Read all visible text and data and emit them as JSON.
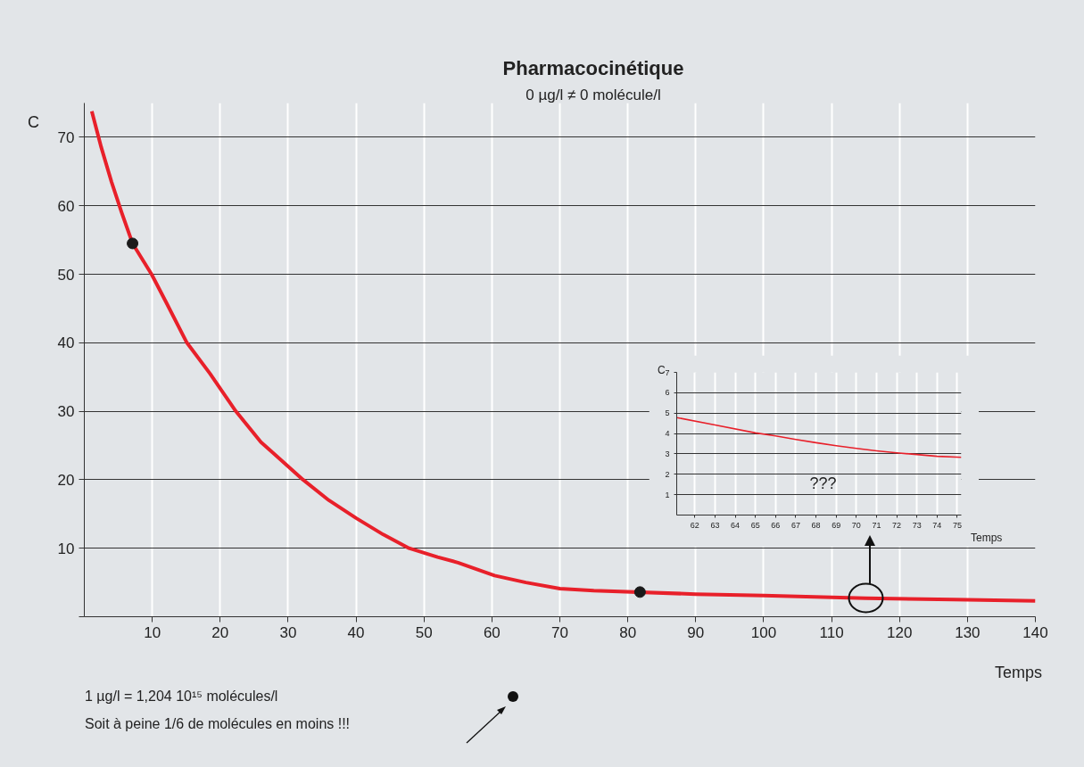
{
  "chart_data": [
    {
      "type": "line",
      "title": "Pharmacocinétique",
      "subtitle": "0 µg/l ≠ 0 molécule/l",
      "xlabel": "Temps",
      "ylabel": "C",
      "annotations": [
        "1 µg/l = 1,204 10¹⁵ molécules/l",
        "Soit à peine 1/6 de molécules en moins !!!"
      ],
      "xlim": [
        0,
        140
      ],
      "ylim": [
        0,
        75
      ],
      "xticks": [
        10,
        20,
        30,
        40,
        50,
        60,
        70,
        80,
        90,
        100,
        110,
        120,
        130,
        140
      ],
      "yticks": [
        {
          "value": 0,
          "label": null
        },
        10,
        20,
        30,
        40,
        50,
        60,
        70
      ],
      "grid": true,
      "series": [
        {
          "color": "#e8202a",
          "x": [
            1.1,
            2.5,
            4,
            5.5,
            7.1,
            9.9,
            12,
            15.1,
            18.5,
            22.3,
            26,
            32.2,
            36,
            40,
            44,
            47.8,
            52,
            55,
            60.4,
            65,
            70,
            75,
            90,
            100,
            115,
            128,
            140
          ],
          "values": [
            73.8,
            68.5,
            63.5,
            59,
            54.5,
            50,
            46,
            40,
            35.5,
            30,
            25.5,
            20,
            17,
            14.4,
            12,
            10,
            8.7,
            7.9,
            6,
            5,
            4.1,
            3.8,
            3.3,
            3.1,
            2.7,
            2.5,
            2.3
          ]
        },
        {
          "type": "scatter",
          "color": "#1a1a1a",
          "x": [
            7.1,
            81.8
          ],
          "values": [
            54.5,
            3.6
          ]
        }
      ]
    },
    {
      "type": "line",
      "xlabel": "Temps",
      "ylabel": "C",
      "annotations": [
        "???"
      ],
      "xlim": [
        61.1,
        75.2
      ],
      "ylim": [
        0,
        7
      ],
      "xticks": [
        62,
        63,
        64,
        65,
        66,
        67,
        68,
        69,
        70,
        71,
        72,
        73,
        74,
        75
      ],
      "yticks": [
        1,
        2,
        3,
        4,
        5,
        6,
        7
      ],
      "grid": true,
      "series": [
        {
          "color": "#e8202a",
          "x": [
            61.1,
            63,
            65,
            66,
            67,
            68,
            69,
            70,
            71,
            72,
            73,
            74,
            75.2
          ],
          "values": [
            4.78,
            4.42,
            4.03,
            3.88,
            3.71,
            3.55,
            3.4,
            3.27,
            3.15,
            3.05,
            2.97,
            2.88,
            2.83
          ]
        }
      ]
    }
  ]
}
